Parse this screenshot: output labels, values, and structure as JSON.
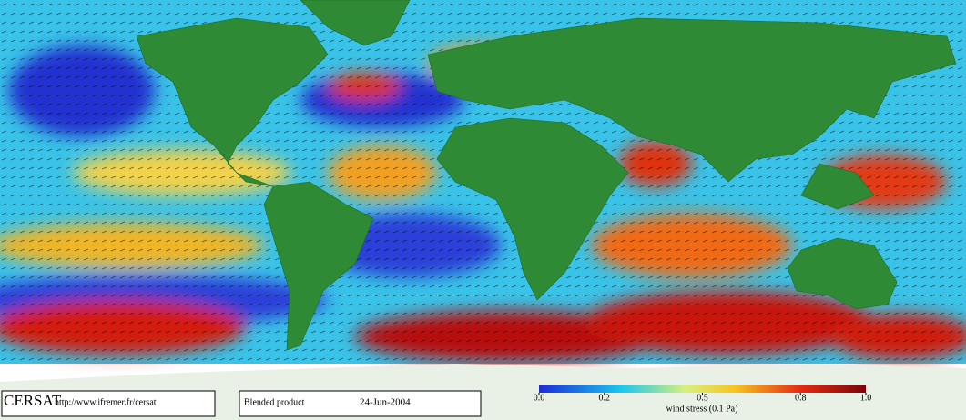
{
  "header": {
    "logo": "CERSAT",
    "url": "http://www.ifremer.fr/cersat",
    "product": "Blended product",
    "date": "24-Jun-2004"
  },
  "colorbar": {
    "label": "wind stress (0.1 Pa)",
    "lim": [
      0,
      1
    ],
    "ticks": [
      {
        "value": 0,
        "label": "0.0"
      },
      0.2,
      0.5,
      0.8,
      {
        "value": 1,
        "label": "1.0"
      }
    ]
  }
}
